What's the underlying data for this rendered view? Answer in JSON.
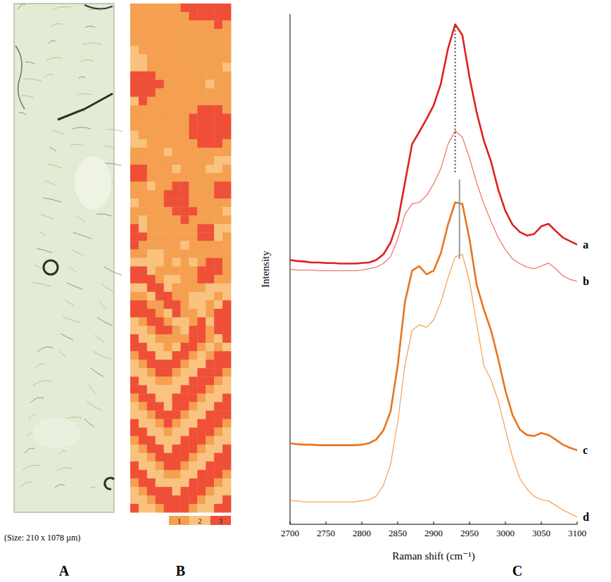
{
  "panel_a": {
    "letter": "A",
    "caption": "(Size: 210 x 1078 µm)"
  },
  "panel_b": {
    "letter": "B",
    "cluster_map": {
      "cells": [
        [
          1,
          1,
          1,
          1,
          1,
          1,
          3,
          3,
          3,
          3,
          3,
          3
        ],
        [
          1,
          1,
          1,
          1,
          1,
          1,
          1,
          3,
          3,
          3,
          3,
          3
        ],
        [
          1,
          1,
          1,
          1,
          1,
          1,
          1,
          1,
          1,
          1,
          3,
          1
        ],
        [
          1,
          1,
          1,
          1,
          1,
          1,
          1,
          1,
          1,
          1,
          1,
          1
        ],
        [
          1,
          1,
          1,
          1,
          1,
          1,
          1,
          1,
          1,
          1,
          1,
          1
        ],
        [
          2,
          1,
          1,
          1,
          1,
          1,
          1,
          1,
          1,
          1,
          1,
          1
        ],
        [
          2,
          2,
          1,
          1,
          1,
          1,
          1,
          1,
          1,
          1,
          1,
          1
        ],
        [
          2,
          2,
          1,
          1,
          1,
          1,
          1,
          1,
          1,
          1,
          1,
          2
        ],
        [
          3,
          3,
          3,
          1,
          1,
          1,
          1,
          1,
          1,
          1,
          1,
          1
        ],
        [
          3,
          3,
          3,
          3,
          1,
          1,
          1,
          1,
          1,
          2,
          1,
          1
        ],
        [
          3,
          3,
          3,
          1,
          1,
          1,
          1,
          1,
          1,
          1,
          1,
          1
        ],
        [
          2,
          3,
          1,
          1,
          1,
          1,
          1,
          1,
          1,
          1,
          1,
          1
        ],
        [
          1,
          1,
          1,
          1,
          1,
          1,
          1,
          1,
          3,
          3,
          3,
          1
        ],
        [
          1,
          1,
          1,
          1,
          1,
          1,
          1,
          3,
          3,
          3,
          3,
          3
        ],
        [
          1,
          1,
          1,
          1,
          1,
          1,
          1,
          3,
          3,
          3,
          3,
          3
        ],
        [
          2,
          1,
          1,
          1,
          1,
          1,
          1,
          3,
          3,
          3,
          3,
          3
        ],
        [
          2,
          2,
          1,
          1,
          1,
          1,
          1,
          1,
          3,
          3,
          3,
          1
        ],
        [
          1,
          1,
          1,
          1,
          2,
          1,
          1,
          1,
          1,
          1,
          1,
          1
        ],
        [
          1,
          1,
          1,
          1,
          1,
          1,
          1,
          1,
          1,
          1,
          2,
          2
        ],
        [
          3,
          3,
          1,
          1,
          1,
          2,
          1,
          1,
          1,
          2,
          2,
          1
        ],
        [
          3,
          3,
          1,
          1,
          1,
          1,
          1,
          1,
          1,
          1,
          1,
          1
        ],
        [
          1,
          1,
          2,
          1,
          1,
          3,
          3,
          1,
          1,
          1,
          3,
          3
        ],
        [
          1,
          1,
          1,
          1,
          3,
          3,
          3,
          1,
          1,
          1,
          3,
          3
        ],
        [
          2,
          1,
          1,
          1,
          3,
          3,
          3,
          1,
          1,
          1,
          1,
          1
        ],
        [
          1,
          1,
          1,
          1,
          1,
          3,
          3,
          3,
          1,
          1,
          1,
          2
        ],
        [
          1,
          2,
          1,
          1,
          1,
          1,
          3,
          1,
          1,
          1,
          1,
          1
        ],
        [
          3,
          2,
          1,
          1,
          1,
          1,
          1,
          1,
          3,
          3,
          2,
          2
        ],
        [
          3,
          3,
          1,
          1,
          1,
          1,
          1,
          1,
          3,
          3,
          2,
          1
        ],
        [
          3,
          1,
          1,
          1,
          1,
          1,
          2,
          1,
          1,
          1,
          1,
          1
        ],
        [
          1,
          1,
          2,
          2,
          1,
          1,
          1,
          1,
          1,
          1,
          1,
          1
        ],
        [
          2,
          2,
          2,
          2,
          1,
          2,
          1,
          2,
          1,
          3,
          3,
          1
        ],
        [
          3,
          3,
          2,
          1,
          1,
          1,
          1,
          1,
          3,
          3,
          3,
          1
        ],
        [
          3,
          3,
          3,
          1,
          2,
          2,
          1,
          1,
          3,
          3,
          1,
          1
        ],
        [
          2,
          2,
          3,
          3,
          2,
          1,
          1,
          1,
          1,
          2,
          2,
          2
        ],
        [
          1,
          1,
          2,
          3,
          3,
          1,
          1,
          2,
          2,
          2,
          1,
          2
        ],
        [
          3,
          3,
          1,
          1,
          3,
          3,
          1,
          2,
          2,
          1,
          2,
          3
        ],
        [
          3,
          3,
          3,
          1,
          2,
          3,
          1,
          1,
          2,
          1,
          3,
          3
        ],
        [
          2,
          1,
          3,
          3,
          1,
          2,
          2,
          1,
          3,
          2,
          3,
          3
        ],
        [
          2,
          2,
          1,
          3,
          3,
          1,
          2,
          3,
          3,
          1,
          3,
          3
        ],
        [
          3,
          2,
          2,
          1,
          1,
          1,
          1,
          3,
          3,
          1,
          2,
          3
        ],
        [
          3,
          3,
          2,
          2,
          1,
          2,
          3,
          3,
          1,
          2,
          1,
          2
        ],
        [
          1,
          3,
          3,
          2,
          2,
          3,
          3,
          1,
          2,
          1,
          3,
          3
        ],
        [
          2,
          1,
          3,
          3,
          3,
          3,
          1,
          2,
          2,
          3,
          3,
          3
        ],
        [
          2,
          2,
          1,
          3,
          3,
          1,
          2,
          2,
          3,
          3,
          3,
          1
        ],
        [
          3,
          2,
          2,
          1,
          1,
          2,
          2,
          3,
          3,
          3,
          1,
          2
        ],
        [
          3,
          3,
          2,
          2,
          2,
          2,
          3,
          3,
          3,
          1,
          2,
          2
        ],
        [
          1,
          3,
          3,
          2,
          2,
          3,
          3,
          3,
          1,
          2,
          2,
          3
        ],
        [
          2,
          1,
          3,
          3,
          2,
          3,
          3,
          1,
          2,
          2,
          3,
          3
        ],
        [
          2,
          2,
          1,
          3,
          3,
          3,
          1,
          2,
          2,
          3,
          3,
          3
        ],
        [
          3,
          2,
          2,
          1,
          3,
          1,
          2,
          2,
          3,
          3,
          3,
          1
        ],
        [
          3,
          3,
          2,
          2,
          1,
          2,
          2,
          3,
          3,
          3,
          1,
          2
        ],
        [
          1,
          3,
          3,
          2,
          2,
          2,
          3,
          3,
          3,
          1,
          2,
          2
        ],
        [
          2,
          1,
          3,
          3,
          2,
          3,
          3,
          3,
          1,
          2,
          2,
          3
        ],
        [
          2,
          2,
          1,
          3,
          3,
          3,
          3,
          1,
          2,
          2,
          3,
          3
        ],
        [
          3,
          2,
          2,
          1,
          3,
          3,
          1,
          2,
          2,
          3,
          3,
          3
        ],
        [
          3,
          3,
          2,
          2,
          1,
          1,
          2,
          2,
          3,
          3,
          3,
          1
        ],
        [
          1,
          3,
          3,
          2,
          2,
          2,
          2,
          3,
          3,
          3,
          1,
          2
        ],
        [
          2,
          1,
          3,
          3,
          3,
          2,
          3,
          3,
          3,
          1,
          2,
          2
        ],
        [
          2,
          2,
          1,
          3,
          3,
          3,
          3,
          3,
          1,
          2,
          2,
          3
        ],
        [
          3,
          2,
          2,
          1,
          3,
          3,
          3,
          1,
          2,
          2,
          3,
          3
        ]
      ],
      "colorbar": {
        "ticks": [
          1,
          2,
          3
        ],
        "colors": [
          "#f4a050",
          "#f9c27e",
          "#ef4f37"
        ]
      }
    }
  },
  "panel_c": {
    "letter": "C"
  },
  "chart_data": {
    "type": "line",
    "x_label": "Raman shift (cm⁻¹)",
    "y_label": "Intensity",
    "tick_labels": "x",
    "x": [
      2700,
      2710,
      2720,
      2730,
      2740,
      2750,
      2760,
      2770,
      2780,
      2790,
      2800,
      2810,
      2820,
      2830,
      2840,
      2850,
      2860,
      2870,
      2880,
      2890,
      2900,
      2910,
      2920,
      2930,
      2940,
      2950,
      2960,
      2970,
      2980,
      2990,
      3000,
      3010,
      3020,
      3030,
      3040,
      3050,
      3060,
      3070,
      3080,
      3090,
      3100
    ],
    "xlim": [
      2700,
      3100
    ],
    "xticks": [
      2700,
      2750,
      2800,
      2850,
      2900,
      2950,
      3000,
      3050,
      3100
    ],
    "ylim": [
      0,
      100
    ],
    "series": [
      {
        "name": "a",
        "color": "#e0201e",
        "line_style": "solid",
        "values": [
          51.8,
          51.6,
          51.5,
          51.3,
          51.3,
          51.2,
          51.2,
          51.1,
          51.1,
          51.1,
          51.2,
          51.3,
          51.8,
          52.9,
          55.2,
          59.3,
          66.9,
          74.5,
          76.9,
          79.4,
          82.1,
          86.3,
          93.2,
          98.0,
          95.9,
          87.6,
          80.7,
          75.2,
          71.1,
          65.6,
          61.4,
          58.7,
          57.3,
          56.6,
          56.9,
          58.4,
          58.9,
          57.5,
          56.2,
          55.5,
          54.8
        ]
      },
      {
        "name": "b",
        "color": "#f07a6a",
        "line_style": "solid",
        "values": [
          50.0,
          49.8,
          49.8,
          49.8,
          49.7,
          49.7,
          49.7,
          49.7,
          49.7,
          49.7,
          49.8,
          50.1,
          50.4,
          51.1,
          52.4,
          55.9,
          60.7,
          62.8,
          63.1,
          64.4,
          66.7,
          69.7,
          74.5,
          77.1,
          75.9,
          71.8,
          66.9,
          62.8,
          59.3,
          56.2,
          53.8,
          52.0,
          51.1,
          50.4,
          50.1,
          50.6,
          51.2,
          50.1,
          48.7,
          48.0,
          47.6
        ]
      },
      {
        "name": "c",
        "color": "#e8751e",
        "line_style": "solid",
        "values": [
          15.9,
          15.7,
          15.6,
          15.6,
          15.5,
          15.5,
          15.5,
          15.5,
          15.5,
          15.5,
          15.6,
          15.9,
          16.6,
          18.4,
          22.1,
          31.1,
          43.5,
          49.7,
          50.6,
          49.0,
          49.7,
          53.1,
          58.7,
          63.1,
          62.8,
          55.9,
          46.9,
          42.1,
          38.0,
          32.4,
          26.2,
          21.4,
          18.6,
          17.5,
          17.3,
          17.9,
          17.5,
          16.6,
          15.6,
          15.0,
          14.5
        ]
      },
      {
        "name": "d",
        "color": "#f5a55a",
        "line_style": "solid",
        "values": [
          4.6,
          4.6,
          4.4,
          4.4,
          4.4,
          4.4,
          4.4,
          4.4,
          4.4,
          4.4,
          4.6,
          4.8,
          5.5,
          7.6,
          11.7,
          20.0,
          31.1,
          38.0,
          39.1,
          38.6,
          40.0,
          43.5,
          48.3,
          52.4,
          52.9,
          47.6,
          39.3,
          31.1,
          28.3,
          24.2,
          18.6,
          13.1,
          9.0,
          6.9,
          5.5,
          4.8,
          4.6,
          3.7,
          2.8,
          2.1,
          1.4
        ]
      }
    ],
    "vlines": [
      {
        "x": 2930,
        "y_from": 69.0,
        "y_to": 98.0,
        "line_style": "dotted",
        "color": "#555555"
      },
      {
        "x": 2936,
        "y_from": 52.0,
        "y_to": 67.6,
        "line_style": "solid",
        "color": "#9a9a9a"
      }
    ]
  }
}
